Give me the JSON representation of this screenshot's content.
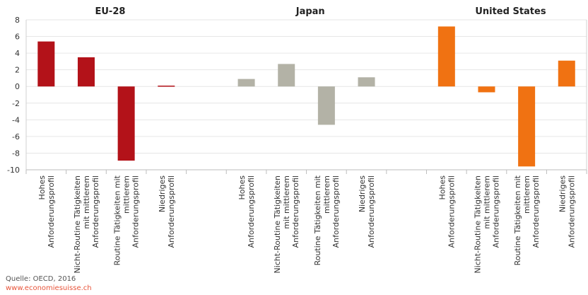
{
  "chart_data": {
    "type": "bar",
    "ylim": [
      -10,
      8
    ],
    "yticks": [
      8,
      6,
      4,
      2,
      0,
      -2,
      -4,
      -6,
      -8,
      -10
    ],
    "grid": true,
    "categories": [
      [
        "Hohes",
        "Anforderungsprofil"
      ],
      [
        "Nicht-Routine Tätigkeiten",
        "mit mittlerem",
        "Anforderungsprofil"
      ],
      [
        "Routine Tätigkeiten mit",
        "mittlerem",
        "Anforderungsprofil"
      ],
      [
        "Niedriges",
        "Anforderungsprofil"
      ]
    ],
    "panels": [
      {
        "title": "EU-28",
        "color": "#b31219",
        "values": [
          5.4,
          3.5,
          -8.9,
          0.1
        ]
      },
      {
        "title": "Japan",
        "color": "#b3b2a6",
        "values": [
          0.9,
          2.7,
          -4.6,
          1.1
        ]
      },
      {
        "title": "United States",
        "color": "#f07212",
        "values": [
          7.2,
          -0.7,
          -9.6,
          3.1
        ]
      }
    ]
  },
  "footer": {
    "source": "Quelle: OECD, 2016",
    "url": "www.economiesuisse.ch"
  }
}
